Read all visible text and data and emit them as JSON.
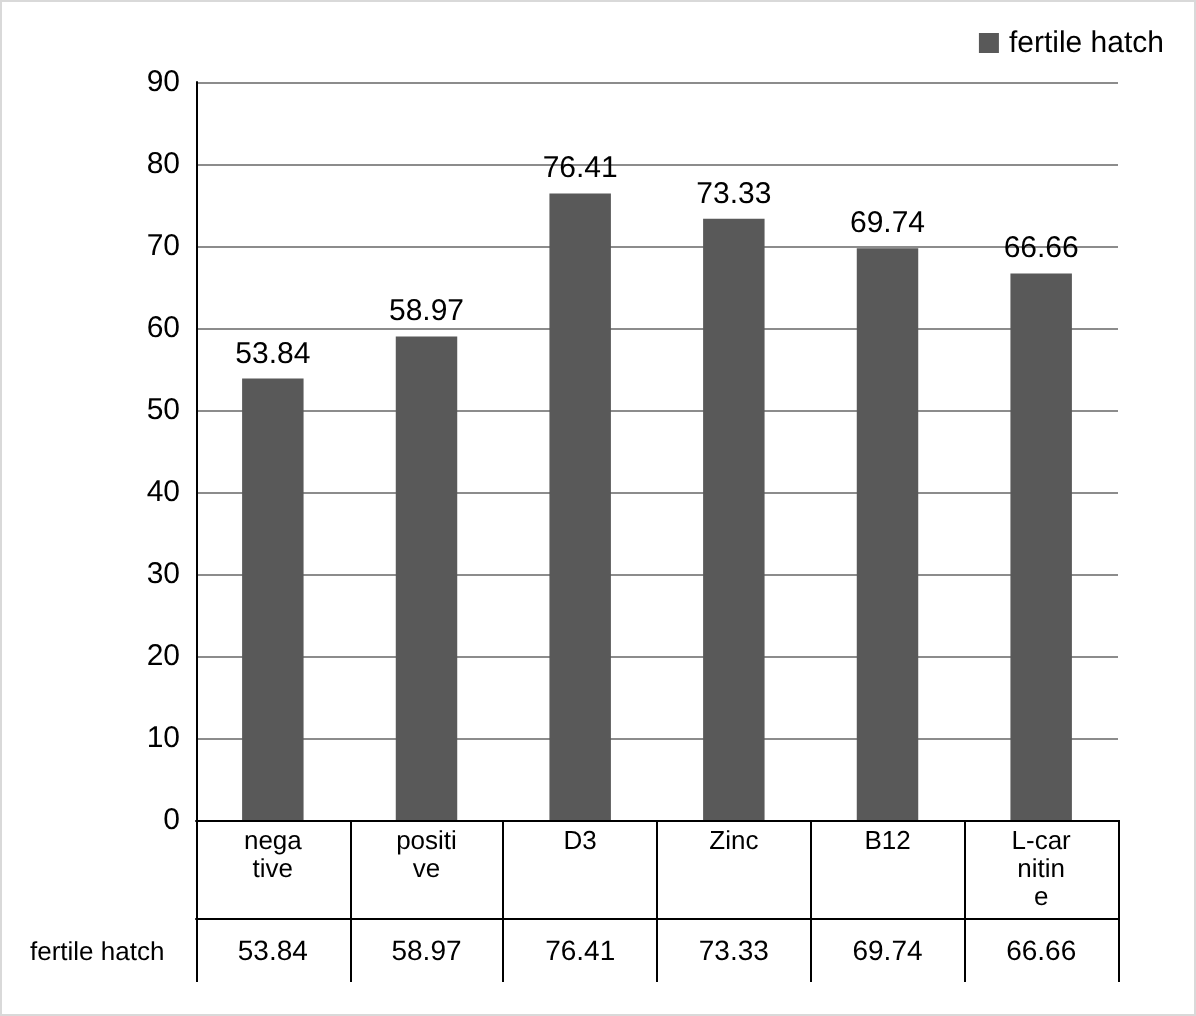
{
  "chart_data": {
    "type": "bar",
    "categories": [
      "negative",
      "positive",
      "D3",
      "Zinc",
      "B12",
      "L-carnitine"
    ],
    "series": [
      {
        "name": "fertile hatch",
        "color": "#595959",
        "values": [
          53.84,
          58.97,
          76.41,
          73.33,
          69.74,
          66.66
        ],
        "value_labels": [
          "53.84",
          "58.97",
          "76.41",
          "73.33",
          "69.74",
          "66.66"
        ]
      }
    ],
    "ylim": [
      0,
      90
    ],
    "yticks": [
      0,
      10,
      20,
      30,
      40,
      50,
      60,
      70,
      80,
      90
    ],
    "grid": "y",
    "legend": "top right",
    "data_labels": true
  }
}
